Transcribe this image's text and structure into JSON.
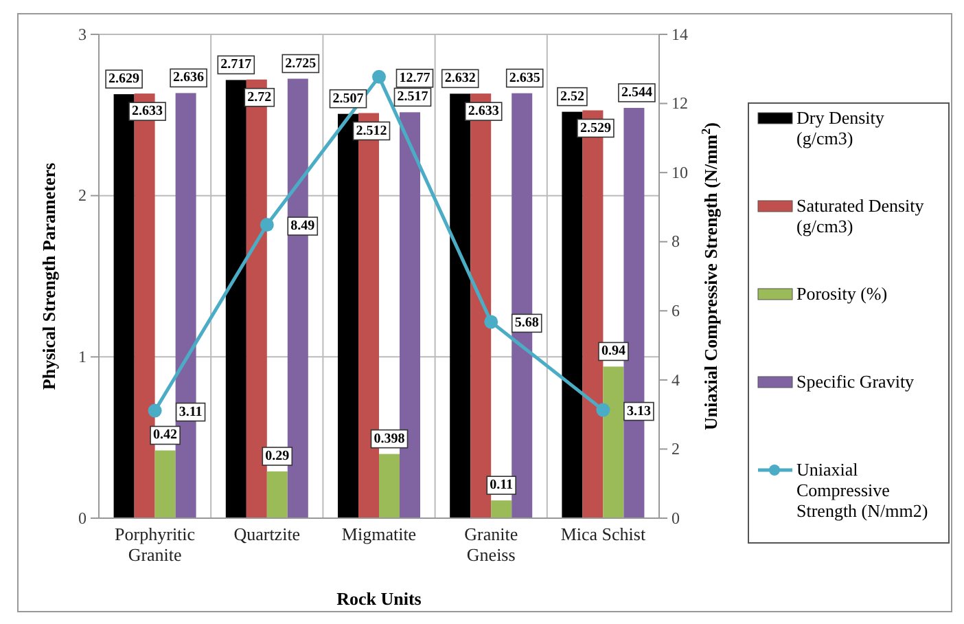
{
  "chart_data": {
    "type": "bar",
    "xlabel": "Rock Units",
    "ylabel": "Physical Strength Parameters",
    "y2label": "Uniaxial Compressive Strength (N/mm$^{2}$)",
    "categories": [
      "Porphyritic Granite",
      "Quartzite",
      "Migmatite",
      "Granite Gneiss",
      "Mica Schist"
    ],
    "series": [
      {
        "name": "Dry Density (g/cm3)",
        "color": "#000000",
        "values": [
          2.629,
          2.717,
          2.507,
          2.632,
          2.52
        ]
      },
      {
        "name": "Saturated Density (g/cm3)",
        "color": "#c0504d",
        "values": [
          2.633,
          2.72,
          2.512,
          2.633,
          2.529
        ]
      },
      {
        "name": "Porosity (%)",
        "color": "#9bbb59",
        "values": [
          0.42,
          0.29,
          0.398,
          0.11,
          0.94
        ]
      },
      {
        "name": "Specific Gravity",
        "color": "#8064a2",
        "values": [
          2.636,
          2.725,
          2.517,
          2.635,
          2.544
        ]
      },
      {
        "name": "Uniaxial Compressive Strength (N/mm2)",
        "type": "line",
        "axis": "y2",
        "color": "#4bacc6",
        "marker": "circle",
        "values": [
          3.11,
          8.49,
          12.77,
          5.68,
          3.13
        ]
      }
    ],
    "ylim": [
      0,
      3
    ],
    "yticks": [
      0,
      1,
      2,
      3
    ],
    "y2lim": [
      0,
      14
    ],
    "y2ticks": [
      0,
      2,
      4,
      6,
      8,
      10,
      12,
      14
    ],
    "grid": true,
    "legend": "right",
    "data_labels": true
  }
}
